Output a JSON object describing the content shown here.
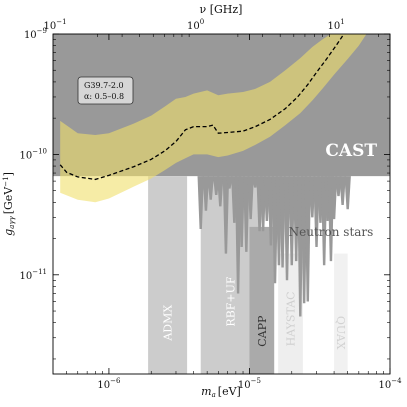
{
  "chart_data": {
    "type": "area",
    "x_scale": "log",
    "y_scale": "log",
    "xlim": [
      4e-07,
      0.0001
    ],
    "ylim": [
      1.5e-12,
      1e-09
    ],
    "xlabel_symbol": "m",
    "xlabel_sub": "a",
    "xlabel_unit": "[eV]",
    "ylabel_symbol": "g",
    "ylabel_sub": "aγγ",
    "ylabel_unit": "[GeV",
    "ylabel_exp": "−1",
    "ylabel_close": "]",
    "top_axis_label": "ν [GHz]",
    "x_ticks": [
      {
        "v": 1e-06,
        "mant": "10",
        "exp": "−6"
      },
      {
        "v": 1e-05,
        "mant": "10",
        "exp": "−5"
      },
      {
        "v": 0.0001,
        "mant": "10",
        "exp": "−4"
      }
    ],
    "y_ticks": [
      {
        "v": 1e-11,
        "mant": "10",
        "exp": "−11"
      },
      {
        "v": 1e-10,
        "mant": "10",
        "exp": "−10"
      },
      {
        "v": 1e-09,
        "mant": "10",
        "exp": "−9"
      }
    ],
    "top_ticks": [
      {
        "v": 0.1,
        "mant": "10",
        "exp": "−1"
      },
      {
        "v": 1.0,
        "mant": "10",
        "exp": "0"
      },
      {
        "v": 10.0,
        "mant": "10",
        "exp": "1"
      }
    ],
    "ghz_per_ev": 241798.9,
    "cast": {
      "label": "CAST",
      "g": 6.6e-11,
      "color": "#999999"
    },
    "band": {
      "color": "#f0e06a",
      "upper": [
        [
          4.5e-07,
          1.9e-10
        ],
        [
          6e-07,
          1.5e-10
        ],
        [
          8e-07,
          1.45e-10
        ],
        [
          1e-06,
          1.5e-10
        ],
        [
          1.5e-06,
          1.8e-10
        ],
        [
          2e-06,
          2.1e-10
        ],
        [
          2.5e-06,
          2.5e-10
        ],
        [
          3e-06,
          2.9e-10
        ],
        [
          3.5e-06,
          3e-10
        ],
        [
          4e-06,
          3.2e-10
        ],
        [
          5e-06,
          3.4e-10
        ],
        [
          6e-06,
          3.1e-10
        ],
        [
          7e-06,
          3.2e-10
        ],
        [
          9e-06,
          3.3e-10
        ],
        [
          1.1e-05,
          3.5e-10
        ],
        [
          1.4e-05,
          4e-10
        ],
        [
          1.8e-05,
          5e-10
        ],
        [
          2.3e-05,
          6.3e-10
        ],
        [
          2.8e-05,
          7.8e-10
        ],
        [
          3.3e-05,
          9e-10
        ],
        [
          3.8e-05,
          1e-09
        ],
        [
          3.8e-05,
          1e-09
        ]
      ],
      "lower": [
        [
          4.5e-07,
          4.8e-11
        ],
        [
          6e-07,
          4.2e-11
        ],
        [
          8e-07,
          4e-11
        ],
        [
          1e-06,
          4.3e-11
        ],
        [
          1.5e-06,
          5.4e-11
        ],
        [
          2e-06,
          6.3e-11
        ],
        [
          2.5e-06,
          7.4e-11
        ],
        [
          3e-06,
          8.5e-11
        ],
        [
          3.5e-06,
          9.3e-11
        ],
        [
          4e-06,
          1e-10
        ],
        [
          5e-06,
          1e-10
        ],
        [
          6e-06,
          9.5e-11
        ],
        [
          7e-06,
          9.8e-11
        ],
        [
          9e-06,
          1.07e-10
        ],
        [
          1.1e-05,
          1.2e-10
        ],
        [
          1.4e-05,
          1.4e-10
        ],
        [
          1.8e-05,
          1.75e-10
        ],
        [
          2.3e-05,
          2.2e-10
        ],
        [
          2.8e-05,
          2.8e-10
        ],
        [
          3.3e-05,
          3.5e-10
        ],
        [
          4e-05,
          4.6e-10
        ],
        [
          5e-05,
          6.2e-10
        ],
        [
          6e-05,
          8e-10
        ],
        [
          6.8e-05,
          1e-09
        ]
      ]
    },
    "median": {
      "color": "#000000",
      "points": [
        [
          4.5e-07,
          8.2e-11
        ],
        [
          5e-07,
          7.1e-11
        ],
        [
          6e-07,
          6.5e-11
        ],
        [
          8e-07,
          6.2e-11
        ],
        [
          1e-06,
          6.7e-11
        ],
        [
          1.5e-06,
          7.9e-11
        ],
        [
          2e-06,
          9.1e-11
        ],
        [
          2.5e-06,
          1.07e-10
        ],
        [
          3e-06,
          1.28e-10
        ],
        [
          3.5e-06,
          1.6e-10
        ],
        [
          4e-06,
          1.7e-10
        ],
        [
          5e-06,
          1.7e-10
        ],
        [
          5.5e-06,
          1.75e-10
        ],
        [
          6e-06,
          1.5e-10
        ],
        [
          7e-06,
          1.52e-10
        ],
        [
          9e-06,
          1.56e-10
        ],
        [
          1.1e-05,
          1.7e-10
        ],
        [
          1.4e-05,
          1.95e-10
        ],
        [
          1.8e-05,
          2.4e-10
        ],
        [
          2.2e-05,
          3e-10
        ],
        [
          2.6e-05,
          3.8e-10
        ],
        [
          3e-05,
          4.8e-10
        ],
        [
          3.5e-05,
          6.1e-10
        ],
        [
          4.1e-05,
          7.9e-10
        ],
        [
          4.7e-05,
          1e-09
        ]
      ]
    },
    "legend": {
      "line1": "G39.7-2.0",
      "line2": "α: 0.5–0.8"
    },
    "exclusion_regions": [
      {
        "name": "ADMX",
        "x1": 1.9e-06,
        "x2": 3.6e-06,
        "ytop": 6.6e-11,
        "color": "#cccccc",
        "label_g": 4e-12,
        "label_color": "#ffffff"
      },
      {
        "name": "RBF+UF",
        "x1": 4.5e-06,
        "x2": 1.2e-05,
        "ytop": 6.6e-11,
        "color": "#cccccc",
        "label_g": 6e-12,
        "label_color": "#ffffff"
      },
      {
        "name": "CAPP",
        "x1": 1e-05,
        "x2": 1.5e-05,
        "ytop": 2.5e-11,
        "color": "#aaaaaa",
        "label_g": 3.4e-12,
        "label_color": "#333333"
      },
      {
        "name": "HAYSTAC",
        "x1": 1.6e-05,
        "x2": 2.4e-05,
        "ytop": 1.5e-11,
        "color": "#eeeeee",
        "label_g": 4.3e-12,
        "label_color": "#cfcfcf"
      },
      {
        "name": "QUAX",
        "x1": 4e-05,
        "x2": 5e-05,
        "ytop": 1.5e-11,
        "color": "#f1f1f1",
        "label_g": 3.3e-12,
        "label_color": "#d2d2d2"
      }
    ],
    "neutron_stars": {
      "label": "Neutron stars",
      "color": "#999999",
      "spikes": [
        [
          4.5e-06,
          6.6e-11,
          2.4e-11
        ],
        [
          4.9e-06,
          6.6e-11,
          3.4e-11
        ],
        [
          5.3e-06,
          6.6e-11,
          4.2e-11
        ],
        [
          5.8e-06,
          6.6e-11,
          4.6e-11
        ],
        [
          6.2e-06,
          6.6e-11,
          3.7e-11
        ],
        [
          6.8e-06,
          6.6e-11,
          1.5e-11
        ],
        [
          7.2e-06,
          6.6e-11,
          5.2e-11
        ],
        [
          7.8e-06,
          6.6e-11,
          2.7e-11
        ],
        [
          8.3e-06,
          6.6e-11,
          7e-12
        ],
        [
          8.8e-06,
          6.6e-11,
          1.7e-11
        ],
        [
          9.5e-06,
          6.6e-11,
          1.55e-11
        ],
        [
          1.02e-05,
          6.6e-11,
          2.9e-11
        ],
        [
          1.1e-05,
          6.6e-11,
          5.3e-11
        ],
        [
          1.18e-05,
          6.6e-11,
          2.3e-11
        ],
        [
          1.25e-05,
          6.6e-11,
          2.3e-11
        ],
        [
          1.33e-05,
          6.6e-11,
          2.8e-11
        ],
        [
          1.42e-05,
          6.6e-11,
          1.75e-11
        ],
        [
          1.52e-05,
          6.6e-11,
          8.5e-12
        ],
        [
          1.62e-05,
          6.6e-11,
          1.2e-11
        ],
        [
          1.72e-05,
          6.6e-11,
          1.15e-11
        ],
        [
          1.85e-05,
          6.6e-11,
          9e-12
        ],
        [
          2e-05,
          6.6e-11,
          1.2e-11
        ],
        [
          2.15e-05,
          6.6e-11,
          1.3e-11
        ],
        [
          2.3e-05,
          6.6e-11,
          4.5e-12
        ],
        [
          2.45e-05,
          6.6e-11,
          5.8e-12
        ],
        [
          2.6e-05,
          6.6e-11,
          6e-12
        ],
        [
          2.8e-05,
          6.6e-11,
          3e-11
        ],
        [
          3e-05,
          6.6e-11,
          1.7e-11
        ],
        [
          3.2e-05,
          6.6e-11,
          2.7e-11
        ],
        [
          3.4e-05,
          6.6e-11,
          1.2e-11
        ],
        [
          3.6e-05,
          6.6e-11,
          2.8e-11
        ],
        [
          3.8e-05,
          6.6e-11,
          1.3e-11
        ],
        [
          4e-05,
          6.6e-11,
          2.9e-11
        ],
        [
          4.3e-05,
          6.6e-11,
          4.5e-11
        ],
        [
          4.6e-05,
          6.6e-11,
          3.8e-11
        ],
        [
          5e-05,
          6.6e-11,
          3.5e-11
        ]
      ]
    }
  }
}
